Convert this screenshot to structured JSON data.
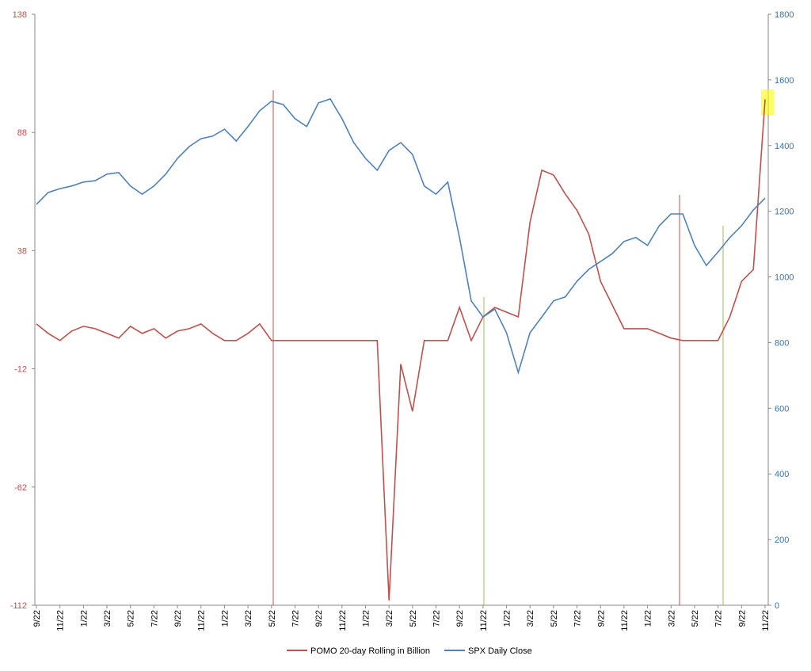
{
  "chart_data": {
    "type": "line",
    "categories": [
      "9/22",
      null,
      "11/22",
      null,
      "1/22",
      null,
      "3/22",
      null,
      "5/22",
      null,
      "7/22",
      null,
      "9/22",
      null,
      "11/22",
      null,
      "1/22",
      null,
      "3/22",
      null,
      "5/22",
      null,
      "7/22",
      null,
      "9/22",
      null,
      "11/22",
      null,
      "1/22",
      null,
      "3/22",
      null,
      "5/22",
      null,
      "7/22",
      null,
      "9/22",
      null,
      "11/22",
      null,
      "1/22",
      null,
      "3/22",
      null,
      "5/22",
      null,
      "7/22",
      null,
      "9/22",
      null,
      "11/22",
      null,
      "1/22",
      null,
      "3/22",
      null,
      "5/22",
      null,
      "7/22",
      null,
      "9/22",
      null,
      "11/22"
    ],
    "series": [
      {
        "name": "POMO 20-day Rolling in Billion",
        "color": "#c0504d",
        "axis": "y",
        "values": [
          7,
          3,
          0,
          4,
          6,
          5,
          3,
          1,
          6,
          3,
          5,
          1,
          4,
          5,
          7,
          3,
          0,
          0,
          3,
          7,
          0,
          0,
          0,
          0,
          0,
          0,
          0,
          0,
          0,
          0,
          -110,
          -10,
          -30,
          0,
          0,
          0,
          14,
          0,
          10,
          14,
          12,
          10,
          50,
          72,
          70,
          62,
          55,
          45,
          25,
          15,
          5,
          5,
          5,
          3,
          1,
          0,
          0,
          0,
          0,
          10,
          25,
          30,
          102
        ]
      },
      {
        "name": "SPX Daily Close",
        "color": "#4f81bd",
        "axis": "y2",
        "values": [
          1221,
          1257,
          1269,
          1277,
          1289,
          1293,
          1313,
          1318,
          1277,
          1252,
          1277,
          1313,
          1361,
          1397,
          1421,
          1429,
          1450,
          1414,
          1458,
          1506,
          1535,
          1525,
          1482,
          1458,
          1530,
          1542,
          1482,
          1409,
          1361,
          1325,
          1385,
          1409,
          1373,
          1277,
          1252,
          1289,
          1120,
          927,
          878,
          902,
          830,
          709,
          830,
          878,
          927,
          939,
          987,
          1023,
          1047,
          1071,
          1108,
          1120,
          1096,
          1156,
          1192,
          1192,
          1096,
          1035,
          1076,
          1120,
          1156,
          1204,
          1240
        ]
      }
    ],
    "ylim": [
      -112,
      138
    ],
    "yticks": [
      -112,
      -62,
      -12,
      38,
      88,
      138
    ],
    "y2lim": [
      0,
      1800
    ],
    "y2ticks": [
      0,
      200,
      400,
      600,
      800,
      1000,
      1200,
      1400,
      1600,
      1800
    ],
    "ycolor": "#c0504d",
    "y2color": "#2e75b6",
    "legend": "bottom"
  }
}
